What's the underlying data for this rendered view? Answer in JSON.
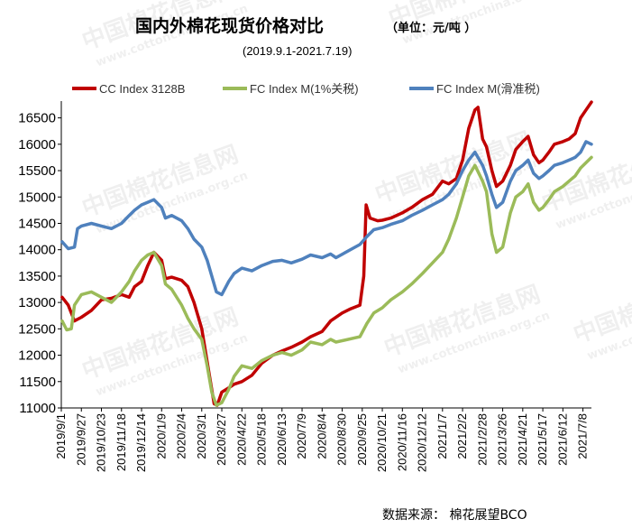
{
  "title": "国内外棉花现货价格对比",
  "unit": "（单位：元/吨 ）",
  "subtitle": "(2019.9.1-2021.7.19)",
  "source": "数据来源：  棉花展望BCO",
  "watermark": [
    "中国棉花信息网",
    "www.cottonchina.org.cn"
  ],
  "colors": {
    "cc": "#C00000",
    "fc1": "#9BBB59",
    "fc2": "#4F81BD"
  },
  "chart_data": {
    "type": "line",
    "title": "国内外棉花现货价格对比",
    "ylim": [
      11000,
      16750
    ],
    "yticks": [
      11000,
      11500,
      12000,
      12500,
      13000,
      13500,
      14000,
      14500,
      15000,
      15500,
      16000,
      16500
    ],
    "xticks": [
      "2019/9/1",
      "2019/9/27",
      "2019/10/23",
      "2019/11/18",
      "2019/12/14",
      "2020/1/9",
      "2020/2/4",
      "2020/3/1",
      "2020/3/27",
      "2020/4/22",
      "2020/5/18",
      "2020/6/13",
      "2020/7/9",
      "2020/8/4",
      "2020/8/30",
      "2020/9/25",
      "2020/10/21",
      "2020/11/16",
      "2020/12/12",
      "2021/1/7",
      "2021/2/2",
      "2021/2/28",
      "2021/3/26",
      "2021/4/21",
      "2021/5/17",
      "2021/6/12",
      "2021/7/8"
    ],
    "legend_position": "top",
    "grid": false,
    "series": [
      {
        "name": "CC Index 3128B",
        "color": "#C00000",
        "points": [
          [
            "2019/9/2",
            13100
          ],
          [
            "2019/9/10",
            12950
          ],
          [
            "2019/9/18",
            12650
          ],
          [
            "2019/9/27",
            12720
          ],
          [
            "2019/10/10",
            12850
          ],
          [
            "2019/10/23",
            13050
          ],
          [
            "2019/11/5",
            13080
          ],
          [
            "2019/11/18",
            13150
          ],
          [
            "2019/11/28",
            13100
          ],
          [
            "2019/12/5",
            13300
          ],
          [
            "2019/12/14",
            13400
          ],
          [
            "2019/12/22",
            13700
          ],
          [
            "2019/12/30",
            13950
          ],
          [
            "2020/1/9",
            13800
          ],
          [
            "2020/1/14",
            13450
          ],
          [
            "2020/1/22",
            13480
          ],
          [
            "2020/2/4",
            13420
          ],
          [
            "2020/2/12",
            13300
          ],
          [
            "2020/2/20",
            13000
          ],
          [
            "2020/3/1",
            12500
          ],
          [
            "2020/3/10",
            11700
          ],
          [
            "2020/3/17",
            11080
          ],
          [
            "2020/3/21",
            11050
          ],
          [
            "2020/3/27",
            11300
          ],
          [
            "2020/4/5",
            11380
          ],
          [
            "2020/4/12",
            11450
          ],
          [
            "2020/4/22",
            11500
          ],
          [
            "2020/5/5",
            11620
          ],
          [
            "2020/5/18",
            11850
          ],
          [
            "2020/6/1",
            12000
          ],
          [
            "2020/6/13",
            12080
          ],
          [
            "2020/6/25",
            12150
          ],
          [
            "2020/7/9",
            12250
          ],
          [
            "2020/7/20",
            12350
          ],
          [
            "2020/8/4",
            12450
          ],
          [
            "2020/8/15",
            12650
          ],
          [
            "2020/8/30",
            12800
          ],
          [
            "2020/9/10",
            12880
          ],
          [
            "2020/9/22",
            12950
          ],
          [
            "2020/9/27",
            13500
          ],
          [
            "2020/9/30",
            14850
          ],
          [
            "2020/10/5",
            14600
          ],
          [
            "2020/10/15",
            14550
          ],
          [
            "2020/10/21",
            14560
          ],
          [
            "2020/11/1",
            14600
          ],
          [
            "2020/11/16",
            14700
          ],
          [
            "2020/11/28",
            14800
          ],
          [
            "2020/12/12",
            14950
          ],
          [
            "2020/12/25",
            15050
          ],
          [
            "2021/1/7",
            15300
          ],
          [
            "2021/1/15",
            15250
          ],
          [
            "2021/1/25",
            15350
          ],
          [
            "2021/2/2",
            15700
          ],
          [
            "2021/2/10",
            16300
          ],
          [
            "2021/2/18",
            16650
          ],
          [
            "2021/2/22",
            16700
          ],
          [
            "2021/2/28",
            16100
          ],
          [
            "2021/3/5",
            15950
          ],
          [
            "2021/3/12",
            15500
          ],
          [
            "2021/3/18",
            15200
          ],
          [
            "2021/3/26",
            15300
          ],
          [
            "2021/4/5",
            15600
          ],
          [
            "2021/4/12",
            15900
          ],
          [
            "2021/4/21",
            16050
          ],
          [
            "2021/4/28",
            16150
          ],
          [
            "2021/5/5",
            15800
          ],
          [
            "2021/5/12",
            15650
          ],
          [
            "2021/5/17",
            15700
          ],
          [
            "2021/5/25",
            15850
          ],
          [
            "2021/6/1",
            16000
          ],
          [
            "2021/6/12",
            16050
          ],
          [
            "2021/6/20",
            16100
          ],
          [
            "2021/6/28",
            16200
          ],
          [
            "2021/7/5",
            16500
          ],
          [
            "2021/7/12",
            16650
          ],
          [
            "2021/7/19",
            16800
          ]
        ]
      },
      {
        "name": "FC Index M(1%关税)",
        "color": "#9BBB59",
        "points": [
          [
            "2019/9/2",
            12650
          ],
          [
            "2019/9/8",
            12480
          ],
          [
            "2019/9/14",
            12500
          ],
          [
            "2019/9/18",
            12950
          ],
          [
            "2019/9/27",
            13150
          ],
          [
            "2019/10/10",
            13200
          ],
          [
            "2019/10/23",
            13100
          ],
          [
            "2019/11/5",
            13000
          ],
          [
            "2019/11/18",
            13200
          ],
          [
            "2019/11/28",
            13400
          ],
          [
            "2019/12/5",
            13600
          ],
          [
            "2019/12/14",
            13800
          ],
          [
            "2019/12/22",
            13900
          ],
          [
            "2019/12/30",
            13950
          ],
          [
            "2020/1/9",
            13700
          ],
          [
            "2020/1/14",
            13350
          ],
          [
            "2020/1/22",
            13250
          ],
          [
            "2020/2/4",
            12950
          ],
          [
            "2020/2/12",
            12700
          ],
          [
            "2020/2/20",
            12500
          ],
          [
            "2020/3/1",
            12300
          ],
          [
            "2020/3/8",
            11800
          ],
          [
            "2020/3/14",
            11300
          ],
          [
            "2020/3/20",
            11050
          ],
          [
            "2020/3/27",
            11100
          ],
          [
            "2020/4/5",
            11350
          ],
          [
            "2020/4/12",
            11600
          ],
          [
            "2020/4/22",
            11800
          ],
          [
            "2020/5/5",
            11750
          ],
          [
            "2020/5/18",
            11900
          ],
          [
            "2020/6/1",
            12000
          ],
          [
            "2020/6/13",
            12050
          ],
          [
            "2020/6/25",
            12000
          ],
          [
            "2020/7/9",
            12100
          ],
          [
            "2020/7/20",
            12250
          ],
          [
            "2020/8/4",
            12200
          ],
          [
            "2020/8/15",
            12300
          ],
          [
            "2020/8/22",
            12250
          ],
          [
            "2020/9/22",
            12350
          ],
          [
            "2020/10/1",
            12600
          ],
          [
            "2020/10/10",
            12800
          ],
          [
            "2020/10/21",
            12900
          ],
          [
            "2020/11/1",
            13050
          ],
          [
            "2020/11/16",
            13200
          ],
          [
            "2020/11/28",
            13350
          ],
          [
            "2020/12/12",
            13550
          ],
          [
            "2020/12/25",
            13750
          ],
          [
            "2021/1/7",
            13950
          ],
          [
            "2021/1/15",
            14200
          ],
          [
            "2021/1/25",
            14600
          ],
          [
            "2021/2/2",
            15000
          ],
          [
            "2021/2/10",
            15400
          ],
          [
            "2021/2/18",
            15600
          ],
          [
            "2021/2/28",
            15300
          ],
          [
            "2021/3/5",
            15100
          ],
          [
            "2021/3/12",
            14300
          ],
          [
            "2021/3/18",
            13950
          ],
          [
            "2021/3/26",
            14050
          ],
          [
            "2021/4/5",
            14700
          ],
          [
            "2021/4/12",
            15000
          ],
          [
            "2021/4/21",
            15100
          ],
          [
            "2021/4/28",
            15250
          ],
          [
            "2021/5/5",
            14900
          ],
          [
            "2021/5/12",
            14750
          ],
          [
            "2021/5/17",
            14800
          ],
          [
            "2021/5/25",
            14950
          ],
          [
            "2021/6/1",
            15100
          ],
          [
            "2021/6/12",
            15200
          ],
          [
            "2021/6/20",
            15300
          ],
          [
            "2021/6/28",
            15400
          ],
          [
            "2021/7/5",
            15550
          ],
          [
            "2021/7/12",
            15650
          ],
          [
            "2021/7/19",
            15750
          ]
        ]
      },
      {
        "name": "FC Index M(滑准税)",
        "color": "#4F81BD",
        "points": [
          [
            "2019/9/2",
            14150
          ],
          [
            "2019/9/10",
            14020
          ],
          [
            "2019/9/18",
            14050
          ],
          [
            "2019/9/22",
            14400
          ],
          [
            "2019/9/27",
            14450
          ],
          [
            "2019/10/10",
            14500
          ],
          [
            "2019/10/23",
            14450
          ],
          [
            "2019/11/5",
            14400
          ],
          [
            "2019/11/18",
            14500
          ],
          [
            "2019/11/28",
            14650
          ],
          [
            "2019/12/5",
            14750
          ],
          [
            "2019/12/14",
            14850
          ],
          [
            "2019/12/22",
            14900
          ],
          [
            "2019/12/30",
            14950
          ],
          [
            "2020/1/9",
            14800
          ],
          [
            "2020/1/14",
            14600
          ],
          [
            "2020/1/22",
            14650
          ],
          [
            "2020/2/4",
            14550
          ],
          [
            "2020/2/12",
            14400
          ],
          [
            "2020/2/20",
            14200
          ],
          [
            "2020/3/1",
            14050
          ],
          [
            "2020/3/8",
            13800
          ],
          [
            "2020/3/14",
            13500
          ],
          [
            "2020/3/20",
            13200
          ],
          [
            "2020/3/27",
            13150
          ],
          [
            "2020/4/5",
            13400
          ],
          [
            "2020/4/12",
            13550
          ],
          [
            "2020/4/22",
            13650
          ],
          [
            "2020/5/5",
            13600
          ],
          [
            "2020/5/18",
            13700
          ],
          [
            "2020/6/1",
            13780
          ],
          [
            "2020/6/13",
            13800
          ],
          [
            "2020/6/25",
            13750
          ],
          [
            "2020/7/9",
            13820
          ],
          [
            "2020/7/20",
            13900
          ],
          [
            "2020/8/4",
            13850
          ],
          [
            "2020/8/15",
            13920
          ],
          [
            "2020/8/22",
            13850
          ],
          [
            "2020/9/22",
            14100
          ],
          [
            "2020/10/1",
            14250
          ],
          [
            "2020/10/10",
            14380
          ],
          [
            "2020/10/21",
            14420
          ],
          [
            "2020/11/1",
            14480
          ],
          [
            "2020/11/16",
            14550
          ],
          [
            "2020/11/28",
            14650
          ],
          [
            "2020/12/12",
            14750
          ],
          [
            "2020/12/25",
            14850
          ],
          [
            "2021/1/7",
            14950
          ],
          [
            "2021/1/15",
            15050
          ],
          [
            "2021/1/25",
            15250
          ],
          [
            "2021/2/2",
            15500
          ],
          [
            "2021/2/10",
            15700
          ],
          [
            "2021/2/18",
            15850
          ],
          [
            "2021/2/28",
            15600
          ],
          [
            "2021/3/5",
            15400
          ],
          [
            "2021/3/12",
            15050
          ],
          [
            "2021/3/18",
            14800
          ],
          [
            "2021/3/26",
            14900
          ],
          [
            "2021/4/5",
            15300
          ],
          [
            "2021/4/12",
            15500
          ],
          [
            "2021/4/21",
            15600
          ],
          [
            "2021/4/28",
            15700
          ],
          [
            "2021/5/5",
            15450
          ],
          [
            "2021/5/12",
            15350
          ],
          [
            "2021/5/17",
            15400
          ],
          [
            "2021/5/25",
            15500
          ],
          [
            "2021/6/1",
            15600
          ],
          [
            "2021/6/12",
            15650
          ],
          [
            "2021/6/20",
            15700
          ],
          [
            "2021/6/28",
            15750
          ],
          [
            "2021/7/5",
            15850
          ],
          [
            "2021/7/12",
            16050
          ],
          [
            "2021/7/19",
            16000
          ]
        ]
      }
    ]
  }
}
